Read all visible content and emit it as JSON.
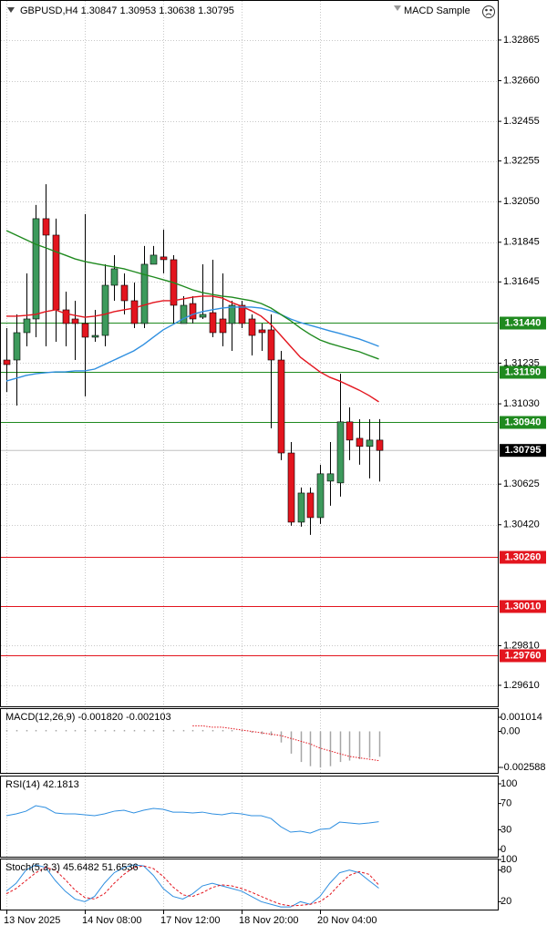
{
  "chart_data": [
    {
      "type": "candlestick",
      "title": "GBPUSD,H4  1.30847 1.30953 1.30638 1.30795",
      "expert": "MACD Sample",
      "categories": [
        "13 Nov 2025",
        null,
        null,
        null,
        null,
        null,
        null,
        null,
        "14 Nov 08:00",
        null,
        null,
        null,
        null,
        null,
        null,
        null,
        "17 Nov 12:00",
        null,
        null,
        null,
        null,
        null,
        null,
        null,
        "18 Nov 20:00",
        null,
        null,
        null,
        null,
        null,
        null,
        null,
        "20 Nov 04:00",
        null,
        null,
        null,
        null,
        null,
        null
      ],
      "open": [
        1.31251,
        1.31251,
        1.31389,
        1.31458,
        1.31964,
        1.31881,
        1.31504,
        1.31458,
        1.31435,
        1.31366,
        1.31375,
        1.31628,
        1.31628,
        1.3155,
        1.31435,
        1.31734,
        1.31771,
        1.31757,
        1.31435,
        1.31536,
        1.31467,
        1.3149,
        1.31458,
        1.31435,
        1.31527,
        1.31458,
        1.31403,
        1.31403,
        1.31251,
        1.30782,
        1.30433,
        1.3058,
        1.30456,
        1.3064,
        1.30631,
        1.30939,
        1.30856,
        1.30815,
        1.30847
      ],
      "high": [
        1.31412,
        1.31481,
        1.31688,
        1.32033,
        1.32138,
        1.31964,
        1.31596,
        1.3155,
        1.31987,
        1.31504,
        1.31734,
        1.3178,
        1.31688,
        1.31642,
        1.31826,
        1.31826,
        1.31909,
        1.3178,
        1.31573,
        1.31573,
        1.31734,
        1.31757,
        1.31688,
        1.3155,
        1.3155,
        1.31481,
        1.31435,
        1.31481,
        1.31297,
        1.30837,
        1.30608,
        1.30608,
        1.30723,
        1.30837,
        1.31182,
        1.31012,
        1.30952,
        1.30952,
        1.30953
      ],
      "low": [
        1.3109,
        1.31021,
        1.3132,
        1.31366,
        1.3132,
        1.31343,
        1.3132,
        1.31251,
        1.31067,
        1.31343,
        1.3132,
        1.3155,
        1.31481,
        1.31412,
        1.31412,
        1.31734,
        1.31688,
        1.31435,
        1.31435,
        1.31435,
        1.31458,
        1.31366,
        1.3132,
        1.31297,
        1.31412,
        1.31274,
        1.31297,
        1.30906,
        1.30746,
        1.30415,
        1.3041,
        1.30369,
        1.30424,
        1.30516,
        1.30562,
        1.30746,
        1.30723,
        1.30654,
        1.30638
      ],
      "close": [
        1.31228,
        1.31389,
        1.31458,
        1.31964,
        1.31881,
        1.31504,
        1.31435,
        1.31435,
        1.31366,
        1.31375,
        1.31628,
        1.31711,
        1.3155,
        1.31435,
        1.31734,
        1.3178,
        1.31757,
        1.31527,
        1.31527,
        1.31458,
        1.31481,
        1.31389,
        1.31389,
        1.31527,
        1.31435,
        1.31375,
        1.31389,
        1.31251,
        1.30782,
        1.30433,
        1.3058,
        1.30456,
        1.30677,
        1.30677,
        1.30939,
        1.30847,
        1.30815,
        1.30847,
        1.30795
      ],
      "up_color": "#3d9a5c",
      "down_color": "#e3151e",
      "lines": [
        {
          "color": "#e3151e",
          "values": [
            1.31472,
            1.31472,
            1.31476,
            1.31481,
            1.31495,
            1.31504,
            1.31486,
            1.31476,
            1.31467,
            1.31472,
            1.31481,
            1.31495,
            1.31504,
            1.31513,
            1.31527,
            1.31541,
            1.3155,
            1.3155,
            1.31559,
            1.31568,
            1.31573,
            1.31573,
            1.31564,
            1.31541,
            1.31522,
            1.31499,
            1.31472,
            1.3143,
            1.31375,
            1.3132,
            1.31265,
            1.31228,
            1.31191,
            1.31164,
            1.31145,
            1.31122,
            1.31099,
            1.31072,
            1.3104
          ]
        },
        {
          "color": "#2f8fe0",
          "values": [
            1.31145,
            1.31159,
            1.31173,
            1.31182,
            1.31187,
            1.31191,
            1.31191,
            1.31196,
            1.31196,
            1.31205,
            1.31228,
            1.31251,
            1.31274,
            1.31297,
            1.31329,
            1.31366,
            1.31403,
            1.3143,
            1.31458,
            1.31481,
            1.31495,
            1.31504,
            1.31513,
            1.31518,
            1.31518,
            1.31518,
            1.31513,
            1.31499,
            1.31481,
            1.31458,
            1.3144,
            1.31426,
            1.31412,
            1.31398,
            1.31385,
            1.31371,
            1.31357,
            1.31339,
            1.3132
          ]
        },
        {
          "color": "#1f8a1f",
          "values": [
            1.31904,
            1.31881,
            1.31858,
            1.31835,
            1.31817,
            1.31798,
            1.3178,
            1.31761,
            1.31748,
            1.31738,
            1.31729,
            1.3172,
            1.31711,
            1.31697,
            1.31683,
            1.3167,
            1.31656,
            1.31642,
            1.31624,
            1.31605,
            1.31591,
            1.31582,
            1.31573,
            1.31568,
            1.31559,
            1.3155,
            1.31536,
            1.31513,
            1.31481,
            1.31449,
            1.31412,
            1.3138,
            1.31352,
            1.31334,
            1.3132,
            1.31306,
            1.31293,
            1.31274,
            1.31256
          ]
        }
      ],
      "levels": [
        {
          "value": 1.3144,
          "label": "1.31440",
          "color": "#1f8a1f"
        },
        {
          "value": 1.3119,
          "label": "1.31190",
          "color": "#1f8a1f"
        },
        {
          "value": 1.3094,
          "label": "1.30940",
          "color": "#1f8a1f"
        },
        {
          "value": 1.3026,
          "label": "1.30260",
          "color": "#e3151e"
        },
        {
          "value": 1.3001,
          "label": "1.30010",
          "color": "#e3151e"
        },
        {
          "value": 1.2976,
          "label": "1.29760",
          "color": "#e3151e"
        }
      ],
      "last_price": {
        "value": 1.30795,
        "label": "1.30795"
      },
      "ylim": [
        1.29504,
        1.33067
      ],
      "yticks": [
        {
          "value": 1.32865,
          "label": "1.32865"
        },
        {
          "value": 1.3266,
          "label": "1.32660"
        },
        {
          "value": 1.32455,
          "label": "1.32455"
        },
        {
          "value": 1.32255,
          "label": "1.32255"
        },
        {
          "value": 1.3205,
          "label": "1.32050"
        },
        {
          "value": 1.31845,
          "label": "1.31845"
        },
        {
          "value": 1.31645,
          "label": "1.31645"
        },
        {
          "value": 1.31235,
          "label": "1.31235"
        },
        {
          "value": 1.3103,
          "label": "1.31030"
        },
        {
          "value": 1.30625,
          "label": "1.30625"
        },
        {
          "value": 1.3042,
          "label": "1.30420"
        },
        {
          "value": 1.2981,
          "label": "1.29810"
        },
        {
          "value": 1.2961,
          "label": "1.29610"
        }
      ],
      "grid": true
    },
    {
      "type": "bar",
      "title": "MACD(12,26,9) -0.001820 -0.002103",
      "series": [
        {
          "style": "histogram",
          "color": "#a6a6a6",
          "values": [
            0.0001,
            0.0001,
            0.0001,
            0.0001,
            0.0001,
            0.0001,
            0.0001,
            0.0001,
            0.0001,
            0.0001,
            0.0001,
            0.0001,
            0.0001,
            0.0001,
            0.0001,
            0.0001,
            0.0001,
            0.0001,
            0.0001,
            0.0001,
            0.0001,
            0.0001,
            0.0001,
            0.0001,
            0.0001,
            -0.0001,
            -0.0002,
            -0.0003,
            -0.0008,
            -0.0016,
            -0.0022,
            -0.0025,
            -0.0026,
            -0.0025,
            -0.0022,
            -0.0021,
            -0.002,
            -0.0019,
            -0.00182
          ]
        },
        {
          "style": "dotted",
          "color": "#e3151e",
          "values": [
            null,
            null,
            null,
            null,
            null,
            null,
            null,
            null,
            null,
            null,
            null,
            null,
            null,
            null,
            null,
            null,
            null,
            null,
            null,
            0.0004,
            0.0004,
            0.0003,
            0.0003,
            0.0002,
            0.0001,
            0.0,
            -0.0001,
            -0.0002,
            -0.0003,
            -0.0005,
            -0.0007,
            -0.0009,
            -0.0012,
            -0.0014,
            -0.0016,
            -0.0018,
            -0.0019,
            -0.002,
            -0.002103
          ]
        }
      ],
      "ylim": [
        -0.002981,
        0.001669
      ],
      "yticks": [
        0.001014,
        {
          "value": 0,
          "label": "0.00"
        },
        -0.002588
      ]
    },
    {
      "type": "line",
      "title": "RSI(14) 42.1813",
      "series": [
        {
          "style": "solid",
          "color": "#2f8fe0",
          "values": [
            51.4,
            54.2,
            58.3,
            66.7,
            63.9,
            55.6,
            54.2,
            54.2,
            52.8,
            51.4,
            54.2,
            58.3,
            59.7,
            55.6,
            59.7,
            62.5,
            61.1,
            56.9,
            56.9,
            55.6,
            56.9,
            54.2,
            52.8,
            55.6,
            54.2,
            51.4,
            51.4,
            47.2,
            34.7,
            26.4,
            27.8,
            25.0,
            30.6,
            31.9,
            41.7,
            40.3,
            38.9,
            40.3,
            42.1813
          ]
        }
      ],
      "ylim": [
        -11,
        112.5
      ],
      "yticks": [
        100,
        70,
        30,
        0
      ]
    },
    {
      "type": "line",
      "title": "Stoch(5,3,3) 45.6482 51.6536",
      "series": [
        {
          "style": "solid",
          "color": "#2f8fe0",
          "values": [
            40,
            55,
            80,
            90,
            85,
            60,
            40,
            25,
            20,
            30,
            55,
            75,
            85,
            90,
            88,
            70,
            45,
            30,
            25,
            35,
            50,
            55,
            50,
            45,
            40,
            30,
            20,
            15,
            10,
            10,
            20,
            15,
            30,
            55,
            75,
            80,
            75,
            60,
            45.6482
          ]
        },
        {
          "style": "dashed",
          "color": "#e3151e",
          "values": [
            35,
            45,
            60,
            75,
            85,
            80,
            62,
            42,
            28,
            25,
            35,
            55,
            72,
            85,
            88,
            83,
            68,
            48,
            33,
            30,
            37,
            47,
            52,
            50,
            45,
            38,
            30,
            22,
            15,
            12,
            13,
            15,
            20,
            33,
            53,
            70,
            77,
            72,
            51.6536
          ]
        }
      ],
      "ylim": [
        5,
        102
      ],
      "yticks": [
        100,
        80,
        20
      ]
    }
  ]
}
